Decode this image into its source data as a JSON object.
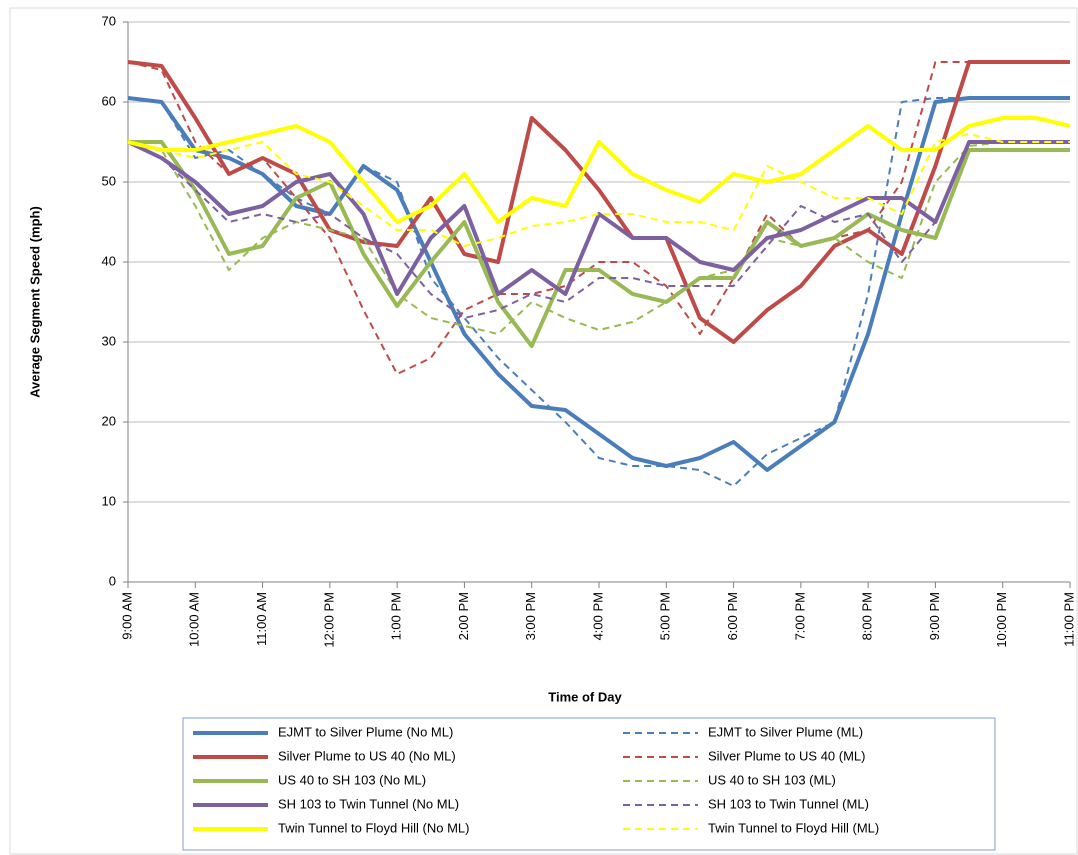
{
  "chart_data": {
    "type": "line",
    "xlabel": "Time of Day",
    "ylabel": "Average Segment Speed (mph)",
    "x": [
      9,
      9.5,
      10,
      10.5,
      11,
      11.5,
      12,
      12.5,
      13,
      13.5,
      14,
      14.5,
      15,
      15.5,
      16,
      16.5,
      17,
      17.5,
      18,
      18.5,
      19,
      19.5,
      20,
      20.5,
      21,
      21.5,
      22,
      22.5,
      23
    ],
    "xlim": [
      9,
      23
    ],
    "xticks": [
      {
        "value": 9,
        "label": "9:00 AM"
      },
      {
        "value": 10,
        "label": "10:00 AM"
      },
      {
        "value": 11,
        "label": "11:00 AM"
      },
      {
        "value": 12,
        "label": "12:00 PM"
      },
      {
        "value": 13,
        "label": "1:00 PM"
      },
      {
        "value": 14,
        "label": "2:00 PM"
      },
      {
        "value": 15,
        "label": "3:00 PM"
      },
      {
        "value": 16,
        "label": "4:00 PM"
      },
      {
        "value": 17,
        "label": "5:00 PM"
      },
      {
        "value": 18,
        "label": "6:00 PM"
      },
      {
        "value": 19,
        "label": "7:00 PM"
      },
      {
        "value": 20,
        "label": "8:00 PM"
      },
      {
        "value": 21,
        "label": "9:00 PM"
      },
      {
        "value": 22,
        "label": "10:00 PM"
      },
      {
        "value": 23,
        "label": "11:00 PM"
      }
    ],
    "ylim": [
      0,
      70
    ],
    "yticks": [
      0,
      10,
      20,
      30,
      40,
      50,
      60,
      70
    ],
    "grid": true,
    "legend": "bottom",
    "series": [
      {
        "name": "EJMT to Silver Plume (No ML)",
        "color": "#4a7ebb",
        "dashed": false,
        "values": [
          60.5,
          60,
          54,
          53,
          51,
          47,
          46,
          52,
          49,
          40,
          31,
          26,
          22,
          21.5,
          18.5,
          15.5,
          14.5,
          15.5,
          17.5,
          14,
          17,
          20,
          31,
          46,
          60,
          60.5,
          60.5,
          60.5,
          60.5
        ]
      },
      {
        "name": "EJMT to Silver Plume (ML)",
        "color": "#4a7ebb",
        "dashed": true,
        "values": [
          60.5,
          60,
          53,
          54,
          51,
          48,
          46,
          52,
          50,
          38,
          33,
          28,
          24,
          20,
          15.5,
          14.5,
          14.5,
          14,
          12,
          16,
          18,
          20,
          36,
          60,
          60.5,
          60.5,
          60.5,
          60.5,
          60.5
        ]
      },
      {
        "name": "Silver Plume to US 40 (No ML)",
        "color": "#be4b48",
        "dashed": false,
        "values": [
          65,
          64.5,
          58,
          51,
          53,
          51,
          44,
          42.5,
          42,
          48,
          41,
          40,
          58,
          54,
          49,
          43,
          43,
          33,
          30,
          34,
          37,
          42,
          44,
          41,
          52,
          65,
          65,
          65,
          65
        ]
      },
      {
        "name": "Silver Plume to US 40 (ML)",
        "color": "#be4b48",
        "dashed": true,
        "values": [
          65,
          64,
          55,
          51,
          53,
          48,
          43,
          34,
          26,
          28,
          34,
          36,
          36,
          37,
          40,
          40,
          37,
          31,
          38,
          46,
          42,
          43,
          44,
          50,
          65,
          65,
          65,
          65,
          65
        ]
      },
      {
        "name": "US 40 to SH 103 (No ML)",
        "color": "#98b954",
        "dashed": false,
        "values": [
          55,
          55,
          49,
          41,
          42,
          48,
          50,
          41,
          34.5,
          40,
          45,
          35,
          29.5,
          39,
          39,
          36,
          35,
          38,
          38,
          45,
          42,
          43,
          46,
          44,
          43,
          54,
          54,
          54,
          54
        ]
      },
      {
        "name": "US 40 to SH 103 (ML)",
        "color": "#98b954",
        "dashed": true,
        "values": [
          55,
          54,
          47,
          39,
          43,
          45,
          44,
          43,
          36,
          33,
          32,
          31,
          35,
          33,
          31.5,
          32.5,
          35,
          38,
          39,
          43,
          42,
          43,
          40,
          38,
          50,
          54.5,
          55,
          55,
          55
        ]
      },
      {
        "name": "SH 103 to Twin Tunnel (No ML)",
        "color": "#7d60a0",
        "dashed": false,
        "values": [
          55,
          53,
          50,
          46,
          47,
          50,
          51,
          46,
          36,
          43,
          47,
          36,
          39,
          36,
          46,
          43,
          43,
          40,
          39,
          43,
          44,
          46,
          48,
          48,
          45,
          55,
          55,
          55,
          55
        ]
      },
      {
        "name": "SH 103 to Twin Tunnel (ML)",
        "color": "#7d60a0",
        "dashed": true,
        "values": [
          55,
          53,
          49,
          45,
          46,
          45,
          46,
          43,
          41,
          36,
          33,
          34,
          36,
          35,
          38,
          38,
          37,
          37,
          37,
          42,
          47,
          45,
          46,
          40,
          45,
          55,
          55,
          55,
          55
        ]
      },
      {
        "name": "Twin Tunnel to Floyd Hill (No ML)",
        "color": "#ffff00",
        "dashed": false,
        "values": [
          55,
          54,
          54,
          55,
          56,
          57,
          55,
          50,
          45,
          47,
          51,
          45,
          48,
          47,
          55,
          51,
          49,
          47.5,
          51,
          50,
          51,
          54,
          57,
          54,
          54,
          57,
          58,
          58,
          57
        ]
      },
      {
        "name": "Twin Tunnel to Floyd Hill (ML)",
        "color": "#ffff00",
        "dashed": true,
        "values": [
          55,
          54,
          53,
          54,
          55,
          51,
          50,
          47,
          44,
          44,
          42,
          43,
          44.5,
          45,
          46,
          46,
          45,
          45,
          44,
          52,
          50,
          48,
          48,
          46,
          55,
          56,
          55,
          55,
          55
        ]
      }
    ]
  }
}
